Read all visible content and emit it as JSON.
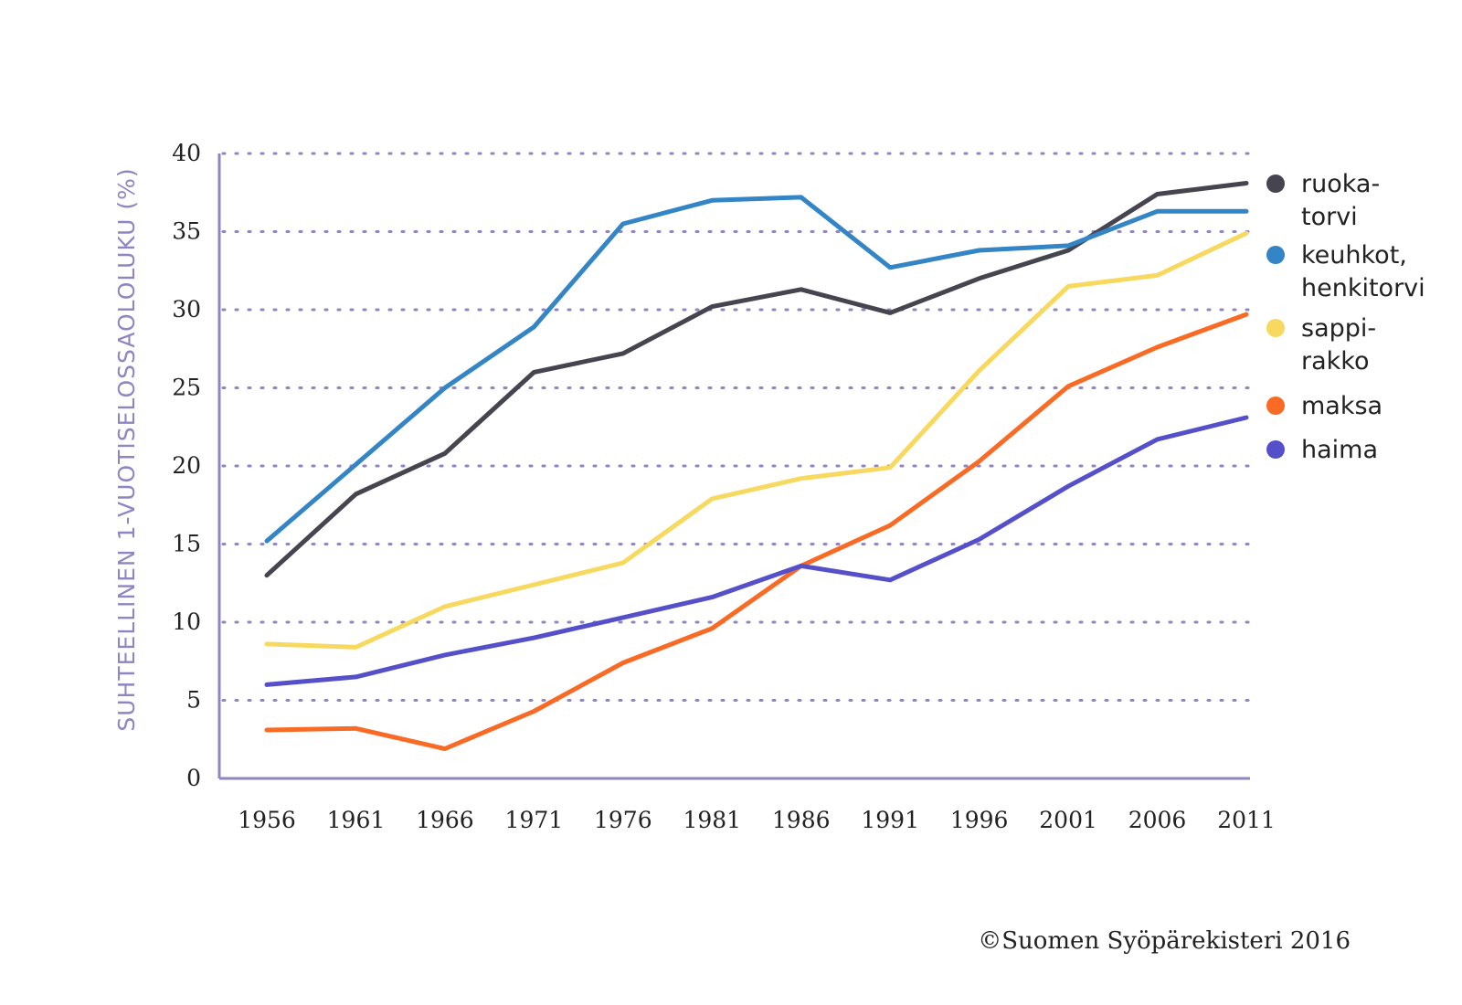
{
  "chart_data": {
    "type": "line",
    "title": "",
    "xlabel": "",
    "ylabel": "SUHTEELLINEN 1-VUOTISELOSSAOLOLUKU (%)",
    "ylim": [
      0,
      40
    ],
    "yticks": [
      "0",
      "5",
      "10",
      "15",
      "20",
      "25",
      "30",
      "35",
      "40"
    ],
    "x": [
      "1956",
      "1961",
      "1966",
      "1971",
      "1976",
      "1981",
      "1986",
      "1991",
      "1996",
      "2001",
      "2006",
      "2011"
    ],
    "grid": "horizontal dotted",
    "legend_position": "right",
    "series": [
      {
        "name": "ruoka-torvi",
        "legend_lines": [
          "ruoka-",
          "torvi"
        ],
        "color": "#45444f",
        "values": [
          13.0,
          18.2,
          20.8,
          26.0,
          27.2,
          30.2,
          31.3,
          29.8,
          32.0,
          33.8,
          37.4,
          38.1
        ]
      },
      {
        "name": "keuhkot, henkitorvi",
        "legend_lines": [
          "keuhkot,",
          "henkitorvi"
        ],
        "color": "#3385c6",
        "values": [
          15.2,
          20.1,
          25.0,
          28.9,
          35.5,
          37.0,
          37.2,
          32.7,
          33.8,
          34.1,
          36.3,
          36.3
        ]
      },
      {
        "name": "sappi-rakko",
        "legend_lines": [
          "sappi-",
          "rakko"
        ],
        "color": "#f6d95e",
        "values": [
          8.6,
          8.4,
          11.0,
          12.4,
          13.8,
          17.9,
          19.2,
          19.9,
          26.1,
          31.5,
          32.2,
          34.9
        ]
      },
      {
        "name": "maksa",
        "legend_lines": [
          "maksa"
        ],
        "color": "#f96a25",
        "values": [
          3.1,
          3.2,
          1.9,
          4.3,
          7.4,
          9.6,
          13.6,
          16.2,
          20.3,
          25.1,
          27.6,
          29.7
        ]
      },
      {
        "name": "haima",
        "legend_lines": [
          "haima"
        ],
        "color": "#5550c9",
        "values": [
          6.0,
          6.5,
          7.9,
          9.0,
          10.3,
          11.6,
          13.6,
          12.7,
          15.3,
          18.7,
          21.7,
          23.1
        ]
      }
    ],
    "axis_color": "#8f85c2",
    "grid_color": "#8f85c2"
  },
  "copyright": "©Suomen Syöpärekisteri 2016"
}
